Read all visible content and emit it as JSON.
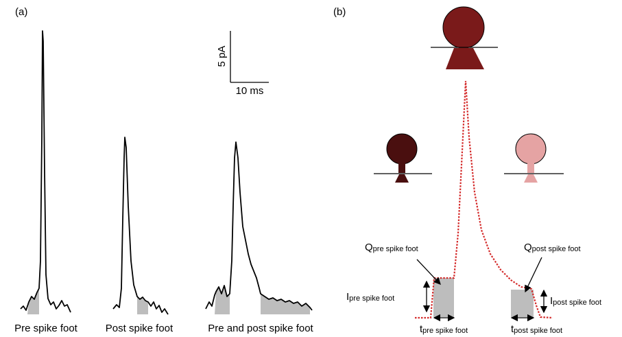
{
  "panels": {
    "a": {
      "label": "(a)",
      "scale_bar": {
        "vertical": "5 pA",
        "horizontal": "10 ms"
      },
      "traces": [
        "Pre spike foot",
        "Post spike foot",
        "Pre and post spike foot"
      ]
    },
    "b": {
      "label": "(b)",
      "annotations": [
        {
          "symbol": "Q",
          "subscript": "pre spike foot"
        },
        {
          "symbol": "I",
          "subscript": "pre spike foot"
        },
        {
          "symbol": "t",
          "subscript": "pre spike foot"
        },
        {
          "symbol": "Q",
          "subscript": "post spike foot"
        },
        {
          "symbol": "I",
          "subscript": "post spike foot"
        },
        {
          "symbol": "t",
          "subscript": "post spike foot"
        }
      ]
    }
  }
}
